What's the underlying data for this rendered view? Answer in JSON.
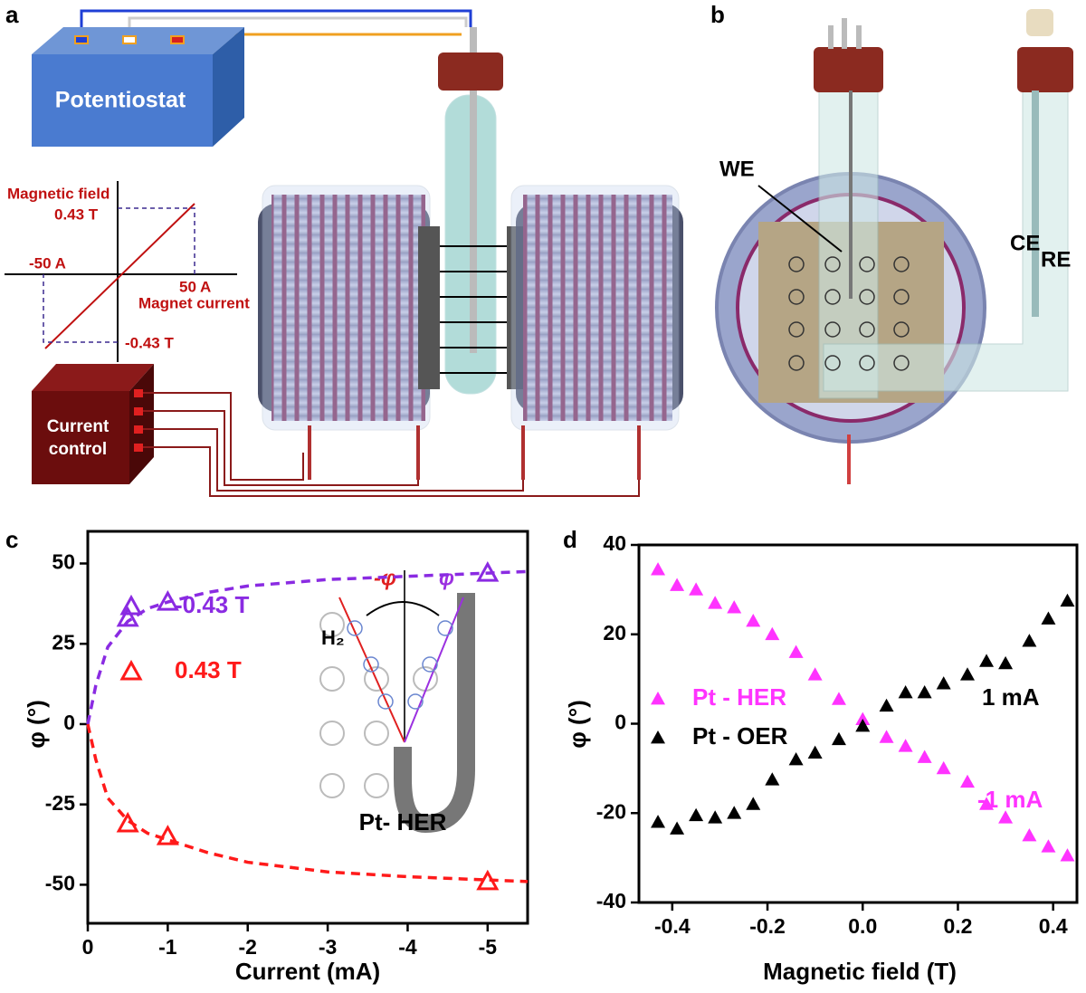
{
  "panel_labels": [
    "a",
    "b",
    "c",
    "d"
  ],
  "diagram_a": {
    "potentiostat": "Potentiostat",
    "field_label": "Magnetic field",
    "field_pos": "0.43 T",
    "current_neg": "-50 A",
    "current_pos": "50 A",
    "current_label": "Magnet current",
    "field_neg": "-0.43 T",
    "control": [
      "Current",
      "control"
    ]
  },
  "diagram_b": {
    "we": "WE",
    "ce": "CE",
    "re": "RE"
  },
  "chart_data": [
    {
      "type": "scatter",
      "x_label": "Current (mA)",
      "y_label": "φ (°)",
      "xlim": [
        0,
        -5.5
      ],
      "xticks": [
        0,
        -1,
        -2,
        -3,
        -4,
        -5
      ],
      "ylim": [
        -62,
        60
      ],
      "yticks": [
        -50,
        -25,
        0,
        25,
        50
      ],
      "series": [
        {
          "name": "-0.43 T",
          "color": "#8a2be2",
          "marker": "open-triangle",
          "x": [
            -0.5,
            -1,
            -5
          ],
          "values": [
            33,
            38,
            47
          ]
        },
        {
          "name": "0.43 T",
          "color": "#ff1a1a",
          "marker": "open-triangle",
          "x": [
            -0.5,
            -1,
            -5
          ],
          "values": [
            -31,
            -35,
            -49
          ]
        },
        {
          "color": "#8a2be2",
          "line": "dashed",
          "x": [
            0,
            -0.1,
            -0.25,
            -0.5,
            -0.75,
            -1,
            -1.5,
            -2,
            -3,
            -4,
            -5,
            -5.5
          ],
          "values": [
            0,
            12,
            24,
            32,
            36,
            38,
            41,
            43,
            45,
            46,
            47,
            47.5
          ]
        },
        {
          "color": "#ff1a1a",
          "line": "dashed",
          "x": [
            0,
            -0.1,
            -0.25,
            -0.5,
            -0.75,
            -1,
            -1.5,
            -2,
            -3,
            -4,
            -5,
            -5.5
          ],
          "values": [
            0,
            -11,
            -23,
            -30,
            -34,
            -36,
            -40,
            -43,
            -46,
            -47.5,
            -48.5,
            -49
          ]
        }
      ],
      "inset": {
        "neg_phi": "-φ",
        "phi": "φ",
        "gas": "H₂",
        "label": "Pt- HER"
      }
    },
    {
      "type": "scatter",
      "x_label": "Magnetic field (T)",
      "y_label": "φ (°)",
      "xlim": [
        -0.47,
        0.45
      ],
      "xticks": [
        -0.4,
        -0.2,
        {
          "value": 0,
          "label": "0.0"
        },
        0.2,
        0.4
      ],
      "ylim": [
        -40,
        40
      ],
      "yticks": [
        -40,
        -20,
        0,
        20,
        40
      ],
      "series": [
        {
          "name": "Pt - HER",
          "color": "#ff33ff",
          "marker": "filled-triangle",
          "x": [
            -0.43,
            -0.39,
            -0.35,
            -0.31,
            -0.27,
            -0.23,
            -0.19,
            -0.14,
            -0.1,
            -0.05,
            0,
            0.05,
            0.09,
            0.13,
            0.17,
            0.22,
            0.26,
            0.3,
            0.35,
            0.39,
            0.43
          ],
          "values": [
            34.5,
            31,
            30,
            27,
            26,
            23,
            20,
            16,
            11,
            5.5,
            1,
            -3,
            -5,
            -7.5,
            -10,
            -13,
            -18,
            -21,
            -25,
            -27.5,
            -29.5
          ]
        },
        {
          "name": "Pt - OER",
          "color": "#000000",
          "marker": "filled-triangle",
          "x": [
            -0.43,
            -0.39,
            -0.35,
            -0.31,
            -0.27,
            -0.23,
            -0.19,
            -0.14,
            -0.1,
            -0.05,
            0,
            0.05,
            0.09,
            0.13,
            0.17,
            0.22,
            0.26,
            0.3,
            0.35,
            0.39,
            0.43
          ],
          "values": [
            -22,
            -23.5,
            -20.5,
            -21,
            -20,
            -18,
            -12.5,
            -8,
            -6.5,
            -3.5,
            -0.5,
            4,
            7,
            7,
            9,
            11,
            14,
            13.5,
            18.5,
            23.5,
            27.5
          ]
        }
      ],
      "annotations": [
        {
          "text": "1 mA",
          "color": "#000000"
        },
        {
          "text": "-1 mA",
          "color": "#ff33ff"
        }
      ]
    }
  ]
}
